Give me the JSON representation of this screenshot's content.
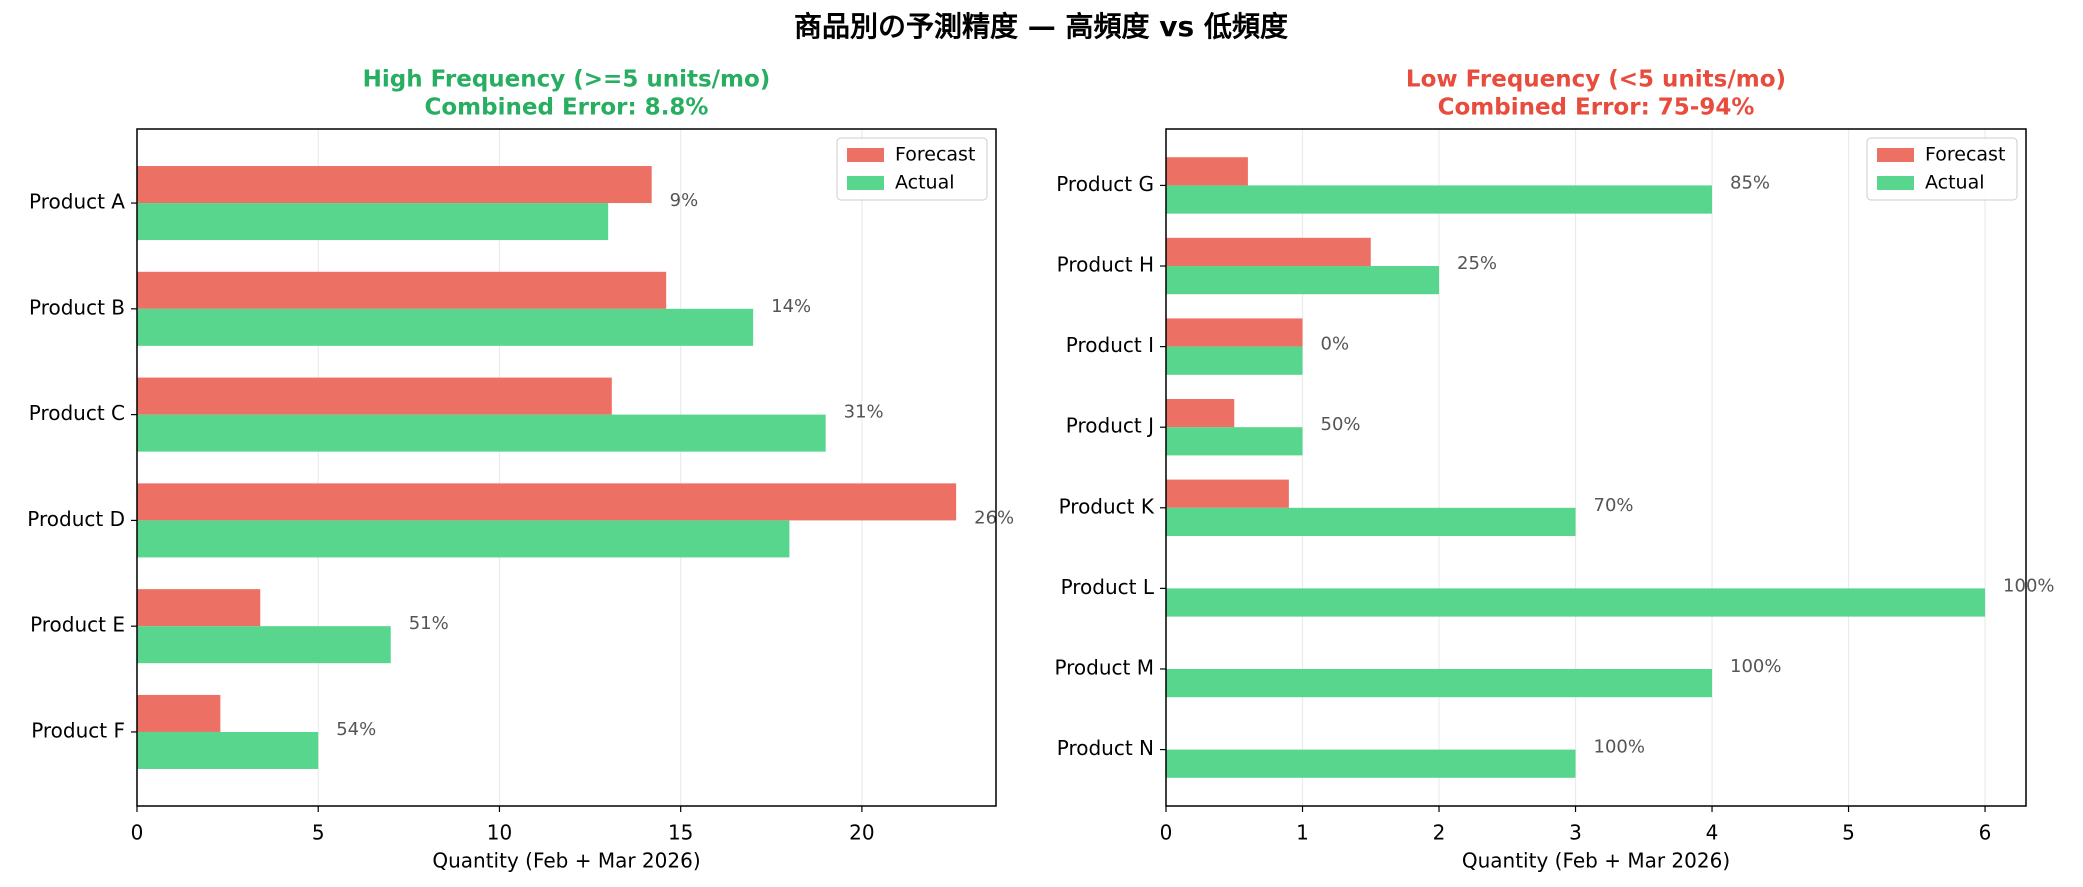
{
  "title": "商品別の予測精度 — 高頻度 vs 低頻度",
  "chart_data": [
    {
      "type": "barh",
      "title": "High Frequency (>=5 units/mo)",
      "subtitle": "Combined Error: 8.8%",
      "title_color": "#27ae60",
      "xlabel": "Quantity (Feb + Mar 2026)",
      "categories": [
        "Product A",
        "Product B",
        "Product C",
        "Product D",
        "Product E",
        "Product F"
      ],
      "series": [
        {
          "name": "Forecast",
          "color": "#ec7063",
          "values": [
            14.2,
            14.6,
            13.1,
            22.6,
            3.4,
            2.3
          ]
        },
        {
          "name": "Actual",
          "color": "#58d68d",
          "values": [
            13,
            17,
            19,
            18,
            7,
            5
          ]
        }
      ],
      "error_labels": [
        "9%",
        "14%",
        "31%",
        "26%",
        "51%",
        "54%"
      ],
      "xlim": [
        0,
        23.7
      ],
      "xticks": [
        0,
        5,
        10,
        15,
        20
      ],
      "grid": true,
      "legend": "upper right"
    },
    {
      "type": "barh",
      "title": "Low Frequency (<5 units/mo)",
      "subtitle": "Combined Error: 75-94%",
      "title_color": "#e74c3c",
      "xlabel": "Quantity (Feb + Mar 2026)",
      "categories": [
        "Product G",
        "Product H",
        "Product I",
        "Product J",
        "Product K",
        "Product L",
        "Product M",
        "Product N"
      ],
      "series": [
        {
          "name": "Forecast",
          "color": "#ec7063",
          "values": [
            0.6,
            1.5,
            1.0,
            0.5,
            0.9,
            0,
            0,
            0
          ]
        },
        {
          "name": "Actual",
          "color": "#58d68d",
          "values": [
            4,
            2,
            1,
            1,
            3,
            6,
            4,
            3
          ]
        }
      ],
      "error_labels": [
        "85%",
        "25%",
        "0%",
        "50%",
        "70%",
        "100%",
        "100%",
        "100%"
      ],
      "xlim": [
        0,
        6.3
      ],
      "xticks": [
        0,
        1,
        2,
        3,
        4,
        5,
        6
      ],
      "grid": true,
      "legend": "upper right"
    }
  ]
}
